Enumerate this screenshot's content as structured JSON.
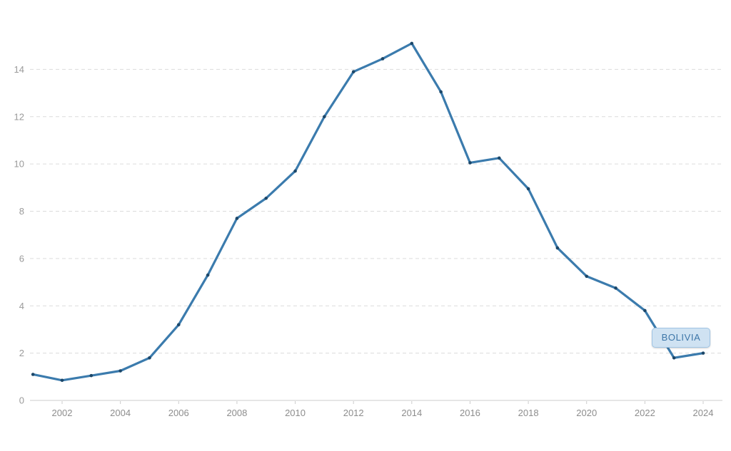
{
  "page": {
    "background": "#ffffff"
  },
  "chart_data": {
    "type": "line",
    "series": [
      {
        "name": "BOLIVIA",
        "color": "#3b7bad",
        "marker_color": "#1c4769",
        "x": [
          2001,
          2002,
          2003,
          2004,
          2005,
          2006,
          2007,
          2008,
          2009,
          2010,
          2011,
          2012,
          2013,
          2014,
          2015,
          2016,
          2017,
          2018,
          2019,
          2020,
          2021,
          2022,
          2023,
          2024
        ],
        "values": [
          1.1,
          0.85,
          1.05,
          1.25,
          1.8,
          3.2,
          5.3,
          7.7,
          8.55,
          9.7,
          12.0,
          13.9,
          14.45,
          15.1,
          13.05,
          10.05,
          10.25,
          8.95,
          6.45,
          5.25,
          4.75,
          3.8,
          1.8,
          2.0
        ]
      }
    ],
    "ylim": [
      0,
      16
    ],
    "yticks": [
      0,
      2,
      4,
      6,
      8,
      10,
      12,
      14
    ],
    "xticks": [
      2002,
      2004,
      2006,
      2008,
      2010,
      2012,
      2014,
      2016,
      2018,
      2020,
      2022,
      2024
    ],
    "grid": {
      "horizontal": true,
      "style": "dashed",
      "color": "#dcdcdc"
    },
    "axis": {
      "line_color": "#cccccc",
      "y_tick_label_color": "#9a9a9a",
      "x_tick_label_color": "#8d8d8d"
    },
    "annotation": {
      "label": "BOLIVIA",
      "box_bg": "#cfe2f2",
      "box_border": "#a0c4e4",
      "text_color": "#3d76a8"
    }
  }
}
